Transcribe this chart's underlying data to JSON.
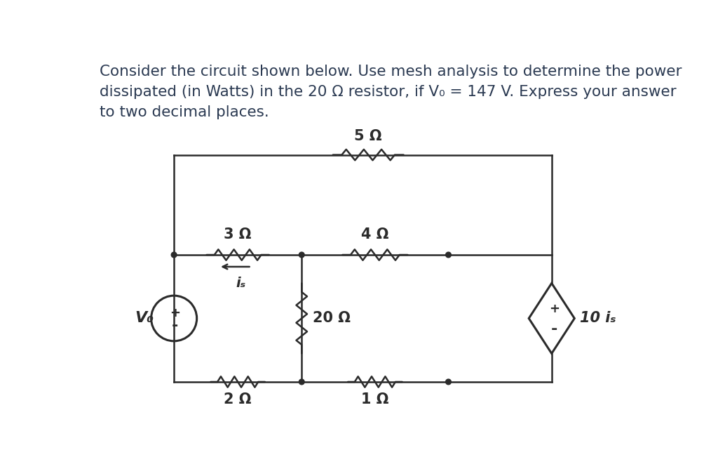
{
  "title_line1": "Consider the circuit shown below. Use mesh analysis to determine the power",
  "title_line2": "dissipated (in Watts) in the 20 Ω resistor, if V₀ = 147 V. Express your answer",
  "title_line3": "to two decimal places.",
  "bg_color": "#ffffff",
  "line_color": "#2b2b2b",
  "fig_width": 10.24,
  "fig_height": 6.51,
  "resistor_5_label": "5 Ω",
  "resistor_3_label": "3 Ω",
  "resistor_4_label": "4 Ω",
  "resistor_20_label": "20 Ω",
  "resistor_2_label": "2 Ω",
  "resistor_1_label": "1 Ω",
  "source_label": "V₀",
  "dep_source_label": "10 iₛ",
  "current_label": "iₛ",
  "plus_label": "+",
  "minus_label": "-",
  "title_color": "#2b3a52",
  "title_fontsize": 15.5,
  "circuit_fontsize": 15,
  "lw": 1.8
}
